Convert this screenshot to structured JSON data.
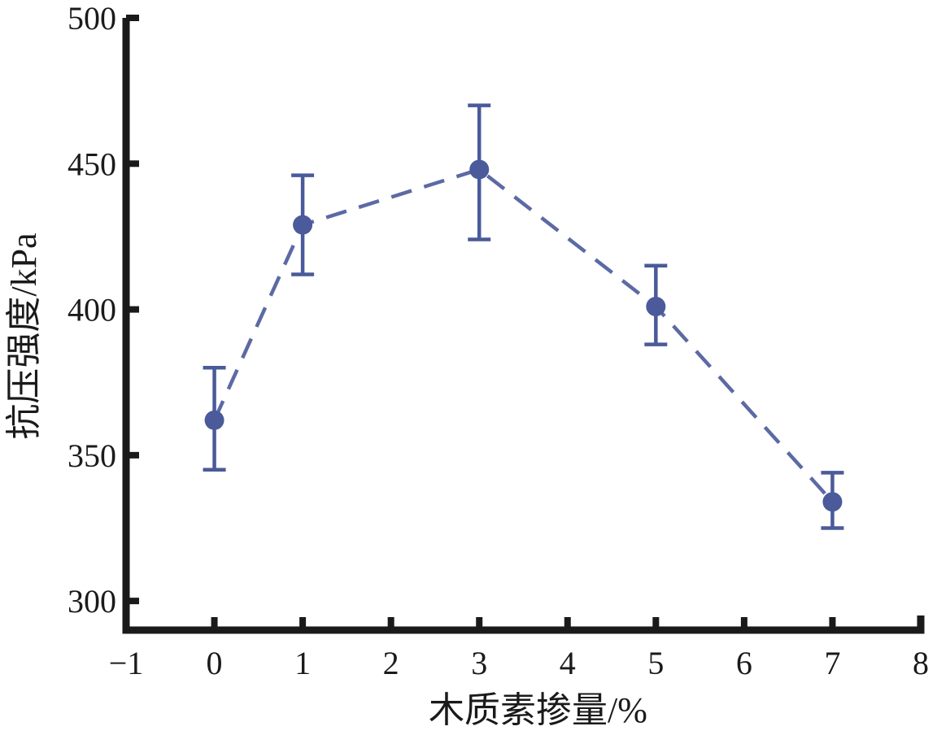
{
  "chart_data": {
    "type": "line",
    "xlabel": "木质素掺量/%",
    "ylabel": "抗压强度/kPa",
    "xlim": [
      -1,
      8
    ],
    "ylim": [
      290,
      500
    ],
    "x_ticks": [
      -1,
      0,
      1,
      2,
      3,
      4,
      5,
      6,
      7,
      8
    ],
    "x_tick_labels": [
      "−1",
      "0",
      "1",
      "2",
      "3",
      "4",
      "5",
      "6",
      "7",
      "8"
    ],
    "y_ticks": [
      300,
      350,
      400,
      450,
      500
    ],
    "y_tick_labels": [
      "300",
      "350",
      "400",
      "450",
      "500"
    ],
    "grid": false,
    "line_style": "dashed",
    "color": "#4a5a9a",
    "marker_color": "#4a5a9a",
    "series": [
      {
        "x": [
          0,
          1,
          3,
          5,
          7
        ],
        "y": [
          362,
          429,
          448,
          401,
          334
        ],
        "err_low": [
          345,
          412,
          424,
          388,
          325
        ],
        "err_high": [
          380,
          446,
          470,
          415,
          344
        ]
      }
    ]
  }
}
